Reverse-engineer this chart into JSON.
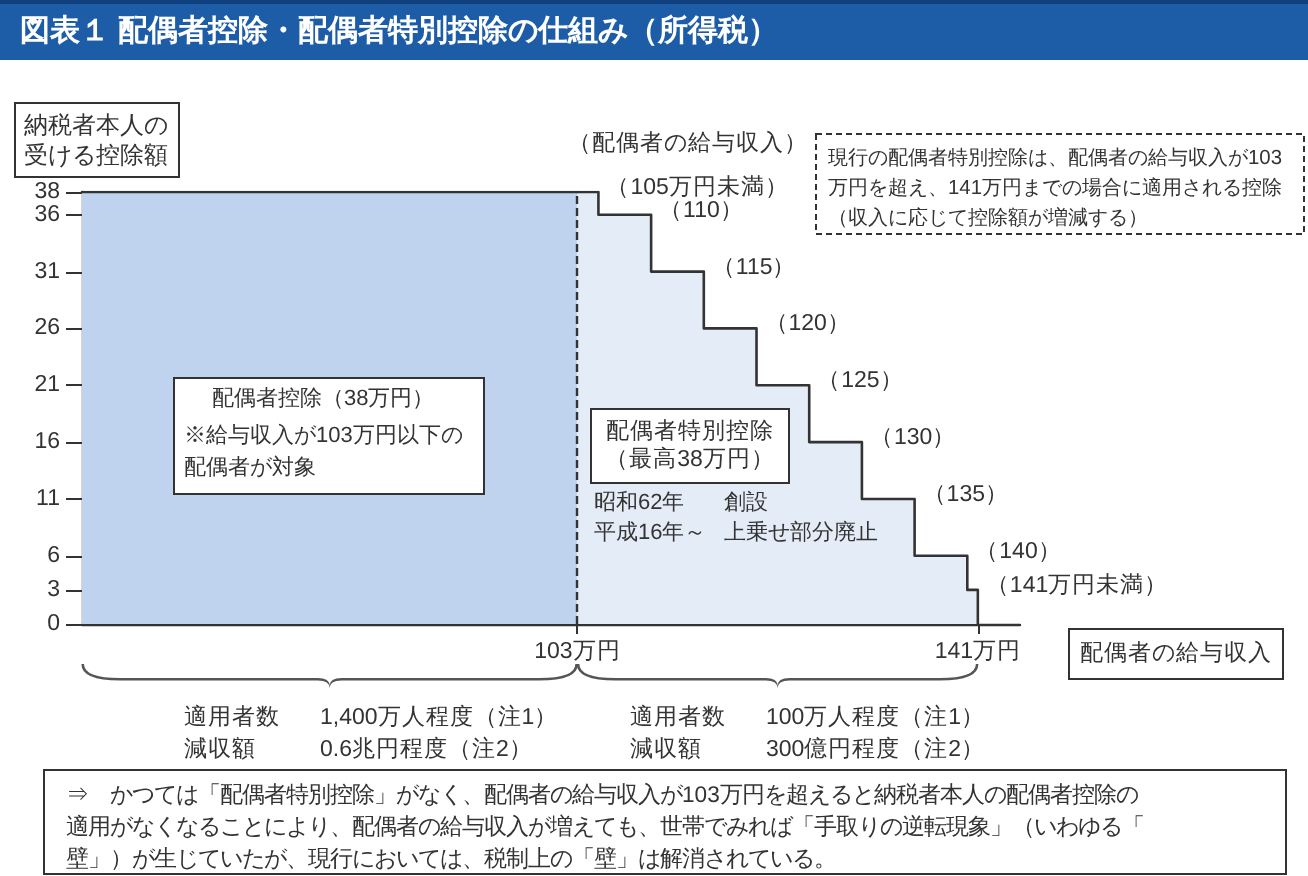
{
  "chart_data": {
    "type": "area",
    "title": "図表１ 配偶者控除・配偶者特別控除の仕組み（所得税）",
    "xlabel": "配偶者の給与収入",
    "ylabel": "納税者本人の受ける控除額",
    "series": [
      {
        "x": [
          56,
          103
        ],
        "values": [
          38,
          38
        ],
        "color": "#bfd3ee"
      },
      {
        "x": [
          103,
          105,
          105,
          110,
          110,
          115,
          115,
          120,
          120,
          125,
          125,
          130,
          130,
          135,
          135,
          140,
          140,
          141,
          141
        ],
        "values": [
          38,
          38,
          36,
          36,
          31,
          31,
          26,
          26,
          21,
          21,
          16,
          16,
          11,
          11,
          6,
          6,
          3,
          3,
          0
        ],
        "color": "#e4ecf7"
      }
    ],
    "xlim": [
      56,
      145
    ],
    "xticks": [
      {
        "value": 103,
        "label": "103万円"
      },
      {
        "value": 141,
        "label": "141万円"
      }
    ],
    "ylim": [
      0,
      38
    ],
    "yticks": [
      0,
      3,
      6,
      11,
      16,
      21,
      26,
      31,
      36,
      38
    ],
    "ref_lines": [
      {
        "axis": "x",
        "value": 103,
        "line_style": "dashed",
        "color": "#333333"
      }
    ],
    "annotations": [
      "（配偶者の給与収入）",
      "現行の配偶者特別控除は、配偶者の給与収入が103万円を超え、141万円までの場合に適用される控除（収入に応じて控除額が増減する）",
      {
        "text": "（105万円未満）",
        "x": 105,
        "y": 38
      },
      {
        "text": "（110）",
        "x": 110,
        "y": 36
      },
      {
        "text": "（115）",
        "x": 115,
        "y": 31
      },
      {
        "text": "（120）",
        "x": 120,
        "y": 26
      },
      {
        "text": "（125）",
        "x": 125,
        "y": 21
      },
      {
        "text": "（130）",
        "x": 130,
        "y": 16
      },
      {
        "text": "（135）",
        "x": 135,
        "y": 11
      },
      {
        "text": "（140）",
        "x": 140,
        "y": 6
      },
      {
        "text": "（141万円未満）",
        "x": 141,
        "y": 3
      },
      "配偶者控除（38万円）",
      "※給与収入が103万円以下の配偶者が対象",
      "配偶者特別控除（最高38万円）",
      "昭和62年",
      "創設",
      "平成16年～",
      "上乗せ部分廃止",
      "適用者数",
      "1,400万人程度（注1）",
      "減収額",
      "0.6兆円程度（注2）",
      "適用者数",
      "100万人程度（注1）",
      "減収額",
      "300億円程度（注2）",
      "⇒　かつては「配偶者特別控除」がなく、配偶者の給与収入が103万円を超えると納税者本人の配偶者控除の適用がなくなることにより、配偶者の給与収入が増えても、世帯でみれば「手取りの逆転現象」（いわゆる「壁」）が生じていたが、現行においては、税制上の「壁」は解消されている。"
    ]
  }
}
